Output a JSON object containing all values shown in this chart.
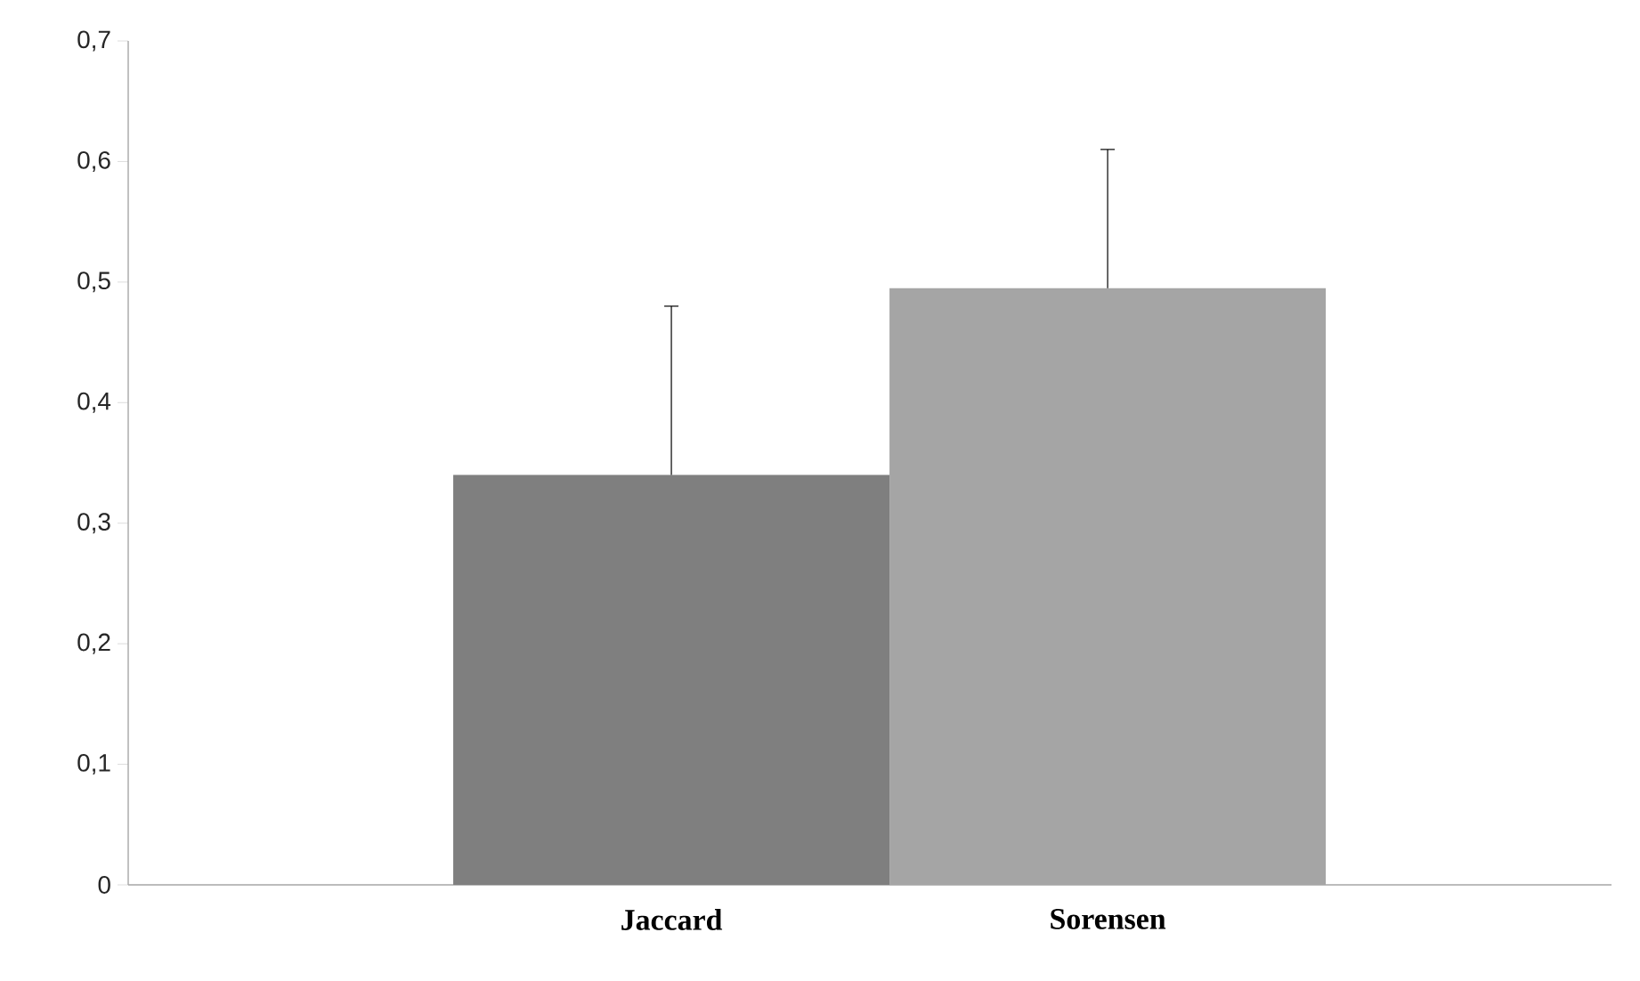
{
  "chart_data": {
    "type": "bar",
    "categories": [
      "Jaccard",
      "Sorensen"
    ],
    "values": [
      0.34,
      0.495
    ],
    "colors": [
      "#7f7f7f",
      "#a5a5a5"
    ],
    "errors": [
      [
        0.34,
        0.48
      ],
      [
        0.495,
        0.61
      ]
    ],
    "ylim": [
      0,
      0.7
    ],
    "yticks": [
      0,
      {
        "value": 0.1,
        "label": "0,1"
      },
      {
        "value": 0.2,
        "label": "0,2"
      },
      {
        "value": 0.3,
        "label": "0,3"
      },
      {
        "value": 0.4,
        "label": "0,4"
      },
      {
        "value": 0.5,
        "label": "0,5"
      },
      {
        "value": 0.6,
        "label": "0,6"
      },
      {
        "value": 0.7,
        "label": "0,7"
      }
    ],
    "grid": false
  }
}
